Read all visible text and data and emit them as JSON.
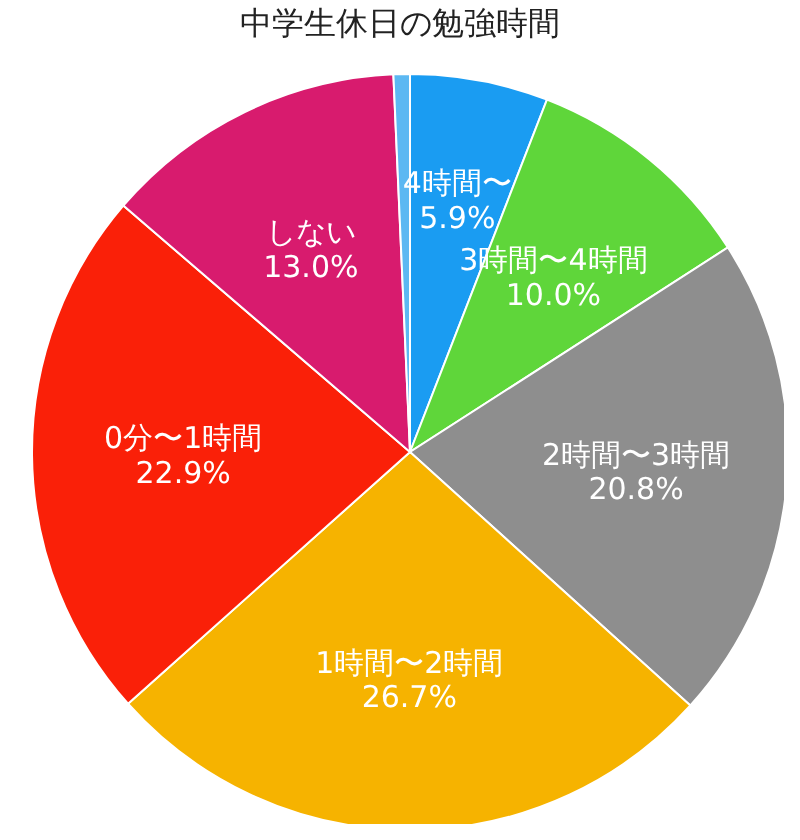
{
  "chart_data": {
    "type": "pie",
    "title": "中学生休日の勉強時間",
    "categories": [
      "4時間〜",
      "3時間〜4時間",
      "2時間〜3時間",
      "1時間〜2時間",
      "0分〜1時間",
      "しない",
      null
    ],
    "values": [
      5.9,
      10.0,
      20.8,
      26.7,
      22.9,
      13.0,
      0.7
    ],
    "value_labels": [
      "5.9%",
      "10.0%",
      "20.8%",
      "26.7%",
      "22.9%",
      "13.0%",
      null
    ],
    "colors": [
      "#1a9cf2",
      "#5fd63a",
      "#8e8e8e",
      "#f6b300",
      "#fa2008",
      "#d81b6e",
      "#5cb8f2"
    ]
  }
}
